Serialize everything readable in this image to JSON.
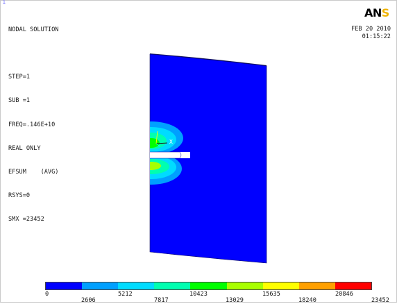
{
  "window": {
    "number": "1"
  },
  "info_lines": [
    "NODAL SOLUTION",
    "",
    "STEP=1",
    "SUB =1",
    "FREQ=.146E+10",
    "REAL ONLY",
    "EFSUM    (AVG)",
    "RSYS=0",
    "SMX =23452"
  ],
  "logo": {
    "text": "AN",
    "accent": "S"
  },
  "datetime": {
    "date": "FEB 20 2010",
    "time": "01:15:22"
  },
  "axis_label": "X",
  "legend": {
    "colors": [
      "#0000ff",
      "#00a0ff",
      "#00dcff",
      "#00ffb0",
      "#00ff00",
      "#a8ff00",
      "#ffff00",
      "#ffa000",
      "#ff0000"
    ],
    "upper_values": [
      "0",
      "5212",
      "10423",
      "15635",
      "20846"
    ],
    "lower_values": [
      "2606",
      "7817",
      "13029",
      "18240",
      "23452"
    ]
  }
}
